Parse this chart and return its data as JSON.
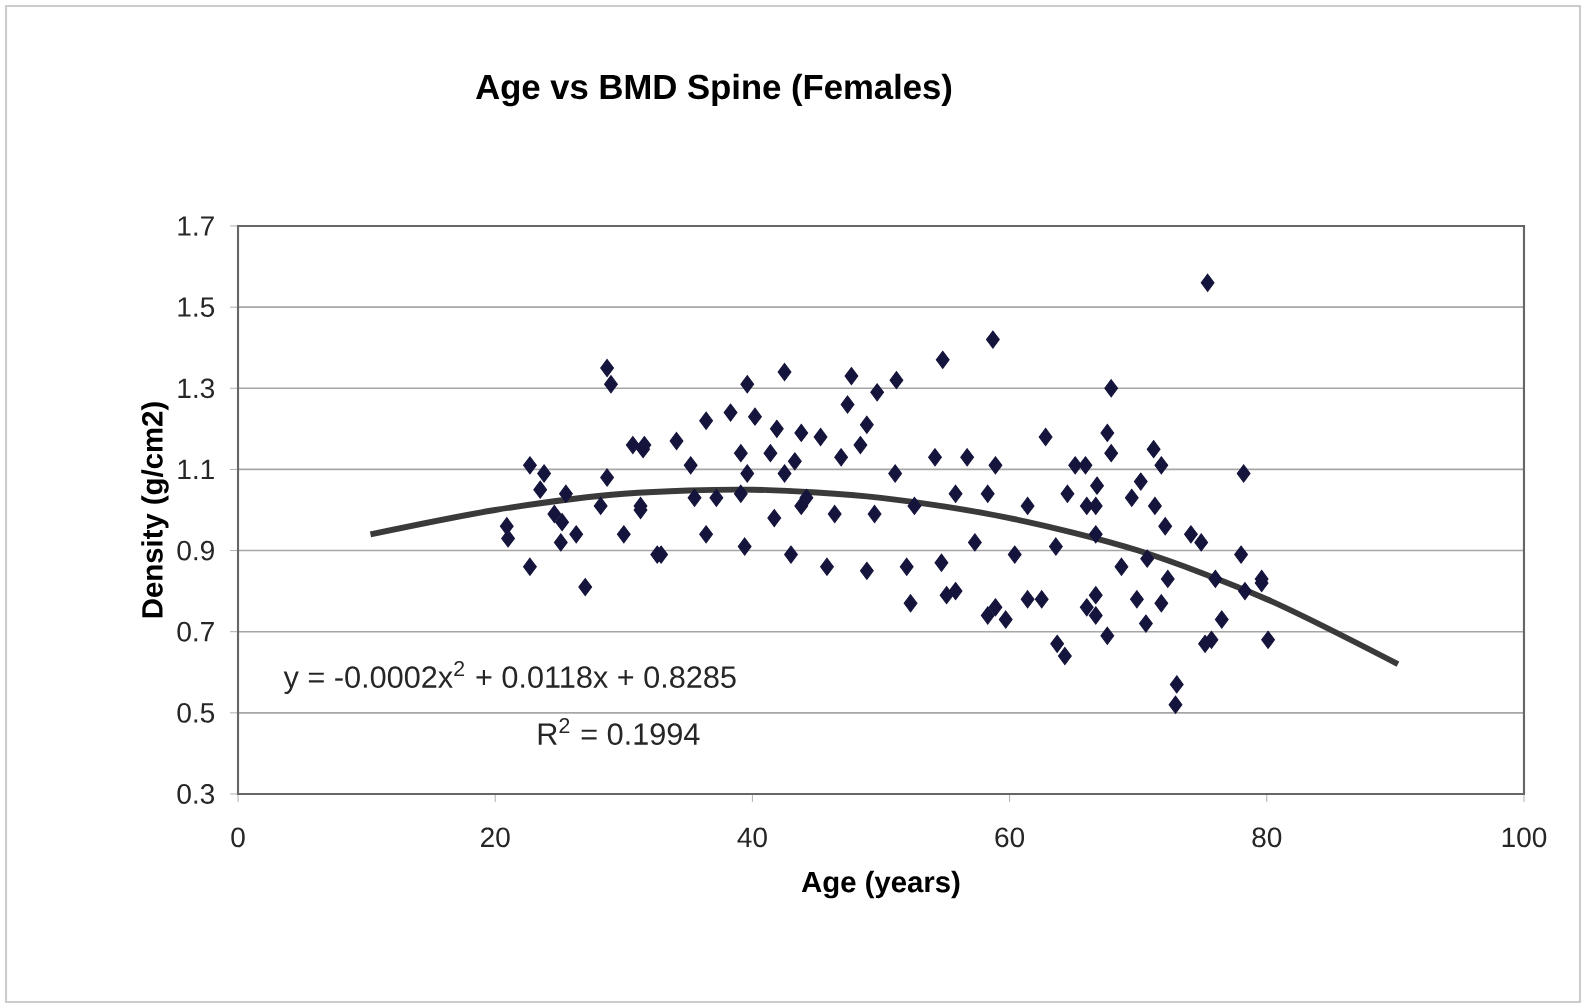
{
  "chart_data": {
    "type": "scatter",
    "title": "Age vs BMD Spine (Females)",
    "xlabel": "Age (years)",
    "ylabel": "Density (g/cm2)",
    "xlim": [
      0,
      100
    ],
    "xticks": [
      0,
      20,
      40,
      60,
      80,
      100
    ],
    "ylim": [
      0.3,
      1.7
    ],
    "yticks": [
      0.3,
      0.5,
      0.7,
      0.9,
      1.1,
      1.3,
      1.5,
      1.7
    ],
    "grid": "y",
    "annotations": [
      "y = -0.0002x$^{2}$ + 0.0118x + 0.8285",
      "R$^{2}$ = 0.1994"
    ],
    "series": [
      {
        "marker": "diamond",
        "color": "#14143c",
        "x": [
          28.7,
          29,
          30.7,
          31.5,
          22.7,
          23.8,
          23.5,
          25.5,
          28.7,
          28.2,
          24.6,
          20.9,
          25.1,
          26.3,
          31.3,
          30,
          32.6,
          22.7,
          27,
          21,
          25.2,
          58.7,
          54.8,
          42.5,
          39.6,
          47.7,
          51.2,
          49.7,
          47.4,
          36.4,
          38.3,
          40.2,
          34.1,
          31.6,
          41.9,
          43.8,
          45.3,
          48.9,
          39.1,
          41.4,
          43.3,
          46.9,
          48.4,
          35.2,
          39.6,
          42.5,
          62.8,
          54.2,
          56.7,
          58.9,
          65.1,
          51.1,
          31.3,
          35.5,
          37.2,
          43.8,
          46.4,
          49.5,
          52.6,
          55.8,
          58.3,
          61.4,
          64.5,
          66.7,
          36.4,
          39.4,
          32.9,
          43,
          45.8,
          48.9,
          52,
          54.7,
          57.3,
          60.4,
          63.6,
          52.3,
          55.8,
          58.9,
          62.5,
          66,
          44.2,
          41.7,
          39.1,
          75.4,
          67.9,
          67.6,
          67.9,
          71.2,
          71.8,
          78.2,
          65.9,
          66.8,
          70.2,
          66,
          69.5,
          71.3,
          72.1,
          74.1,
          74.9,
          66.7,
          68.7,
          70.7,
          78,
          79.6,
          76,
          72.3,
          66.7,
          69.9,
          67.6,
          70.6,
          75.2,
          75.7,
          80.1,
          73,
          72.9,
          76.5,
          78.3,
          79.6,
          66.7,
          71.8,
          63.7,
          64.3,
          55.1,
          58.3,
          59.7,
          61.4
        ],
        "values": [
          1.35,
          1.31,
          1.16,
          1.15,
          1.11,
          1.09,
          1.05,
          1.04,
          1.08,
          1.01,
          0.99,
          0.96,
          0.92,
          0.94,
          1.0,
          0.94,
          0.89,
          0.86,
          0.81,
          0.93,
          0.97,
          1.42,
          1.37,
          1.34,
          1.31,
          1.33,
          1.32,
          1.29,
          1.26,
          1.22,
          1.24,
          1.23,
          1.17,
          1.16,
          1.2,
          1.19,
          1.18,
          1.21,
          1.14,
          1.14,
          1.12,
          1.13,
          1.16,
          1.11,
          1.09,
          1.09,
          1.18,
          1.13,
          1.13,
          1.11,
          1.11,
          1.09,
          1.01,
          1.03,
          1.03,
          1.01,
          0.99,
          0.99,
          1.01,
          1.04,
          1.04,
          1.01,
          1.04,
          1.01,
          0.94,
          0.91,
          0.89,
          0.89,
          0.86,
          0.85,
          0.86,
          0.87,
          0.92,
          0.89,
          0.91,
          0.77,
          0.8,
          0.76,
          0.78,
          0.76,
          1.03,
          0.98,
          1.04,
          1.56,
          1.3,
          1.19,
          1.14,
          1.15,
          1.11,
          1.09,
          1.11,
          1.06,
          1.07,
          1.01,
          1.03,
          1.01,
          0.96,
          0.94,
          0.92,
          0.94,
          0.86,
          0.88,
          0.89,
          0.83,
          0.83,
          0.83,
          0.79,
          0.78,
          0.69,
          0.72,
          0.67,
          0.68,
          0.68,
          0.57,
          0.52,
          0.73,
          0.8,
          0.82,
          0.74,
          0.77,
          0.67,
          0.64,
          0.79,
          0.74,
          0.73,
          0.78
        ]
      },
      {
        "type": "line",
        "marker": "none",
        "color": "#3a3a3a",
        "x": [
          10.3,
          20,
          30,
          40,
          50,
          60,
          70,
          80,
          90.2
        ],
        "values": [
          0.94,
          1.0,
          1.04,
          1.05,
          1.03,
          0.98,
          0.9,
          0.78,
          0.62
        ]
      }
    ]
  }
}
